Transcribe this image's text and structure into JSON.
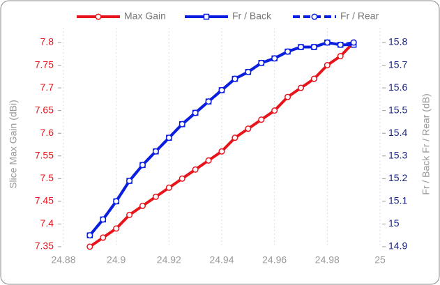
{
  "chart_data": {
    "type": "line",
    "ylabel": "Slice Max Gain (dBi)",
    "y2label": "Fr / Back  Fr / Rear (dB)",
    "x": [
      24.89,
      24.895,
      24.9,
      24.905,
      24.91,
      24.915,
      24.92,
      24.925,
      24.93,
      24.935,
      24.94,
      24.945,
      24.95,
      24.955,
      24.96,
      24.965,
      24.97,
      24.975,
      24.98,
      24.985,
      24.99
    ],
    "xlim": [
      24.88,
      25
    ],
    "xticks": [
      24.88,
      24.9,
      24.92,
      24.94,
      24.96,
      24.98,
      25
    ],
    "ylim": [
      7.35,
      7.8
    ],
    "yticks": [
      7.35,
      7.4,
      7.45,
      7.5,
      7.55,
      7.6,
      7.65,
      7.7,
      7.75,
      7.8
    ],
    "y2lim": [
      14.9,
      15.8
    ],
    "y2ticks": [
      14.9,
      15,
      15.1,
      15.2,
      15.3,
      15.4,
      15.5,
      15.6,
      15.7,
      15.8
    ],
    "grid": true,
    "legend": "top",
    "series": [
      {
        "name": "Max Gain",
        "color": "#e8141c",
        "marker": "circle",
        "linestyle": "solid",
        "values": [
          7.35,
          7.37,
          7.39,
          7.42,
          7.44,
          7.46,
          7.48,
          7.5,
          7.52,
          7.54,
          7.56,
          7.59,
          7.61,
          7.63,
          7.65,
          7.68,
          7.7,
          7.72,
          7.75,
          7.77,
          7.8
        ]
      },
      {
        "name": "Fr / Back",
        "color": "#0a1ee0",
        "marker": "square",
        "linestyle": "solid",
        "axis": "y2",
        "values": [
          14.95,
          15.02,
          15.1,
          15.19,
          15.26,
          15.32,
          15.38,
          15.44,
          15.49,
          15.54,
          15.59,
          15.64,
          15.67,
          15.71,
          15.73,
          15.76,
          15.78,
          15.78,
          15.8,
          15.79,
          15.79
        ]
      },
      {
        "name": "Fr / Rear",
        "color": "#0a1ee0",
        "marker": "circle",
        "linestyle": "dashed",
        "axis": "y2",
        "values": [
          14.95,
          15.02,
          15.1,
          15.19,
          15.26,
          15.32,
          15.38,
          15.44,
          15.49,
          15.54,
          15.59,
          15.64,
          15.67,
          15.71,
          15.73,
          15.76,
          15.78,
          15.78,
          15.8,
          15.79,
          15.8
        ]
      }
    ]
  }
}
